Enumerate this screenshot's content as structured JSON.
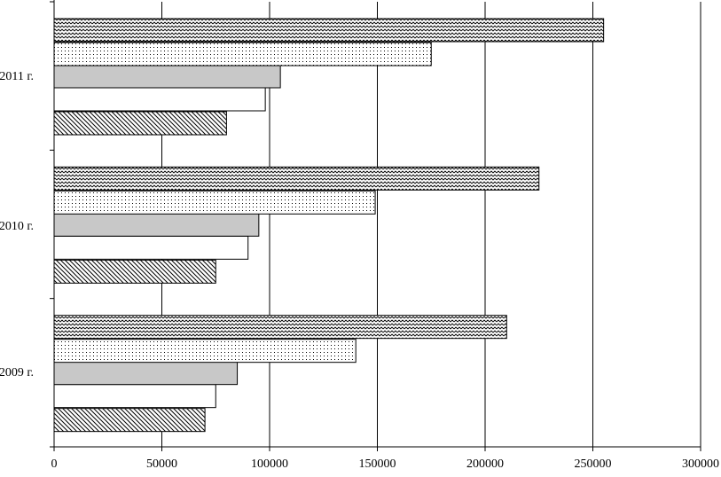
{
  "chart_data": {
    "type": "bar",
    "orientation": "horizontal",
    "categories": [
      "2009 г.",
      "2010 г.",
      "2011 г."
    ],
    "series": [
      {
        "pattern": "diagonal-hatch",
        "values": [
          70000,
          75000,
          80000
        ]
      },
      {
        "pattern": "white",
        "values": [
          75000,
          90000,
          98000
        ]
      },
      {
        "pattern": "gray",
        "values": [
          85000,
          95000,
          105000
        ]
      },
      {
        "pattern": "dots",
        "values": [
          140000,
          149000,
          175000
        ]
      },
      {
        "pattern": "waves",
        "values": [
          210000,
          225000,
          255000
        ]
      }
    ],
    "xlim": [
      0,
      300000
    ],
    "xticks": [
      "0",
      "50000",
      "100000",
      "150000",
      "200000",
      "250000",
      "300000"
    ],
    "grid": true,
    "legend": "none",
    "colors": {
      "gray": "#c8c8c8",
      "stroke": "#000000",
      "background": "#ffffff"
    }
  }
}
